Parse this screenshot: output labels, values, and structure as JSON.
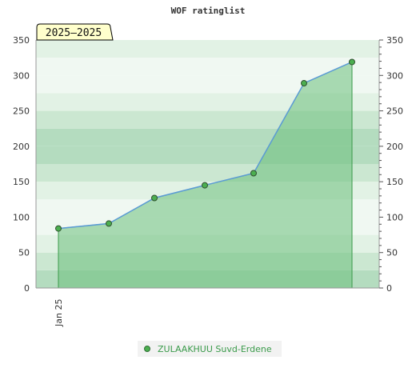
{
  "chart_data": {
    "type": "area",
    "title": "WOF ratinglist",
    "period_label": "2025–2025",
    "categories": [
      "Jan 25",
      "",
      "",
      "",
      "",
      "",
      ""
    ],
    "series": [
      {
        "name": "ZULAAKHUU Suvd-Erdene",
        "values": [
          84,
          91,
          127,
          145,
          162,
          289,
          319
        ]
      }
    ],
    "ylim": [
      0,
      350
    ],
    "yticks": [
      0,
      50,
      100,
      150,
      200,
      250,
      300,
      350
    ],
    "grid": true,
    "legend_position": "bottom",
    "colors": {
      "line": "#5b9bd5",
      "fill": "#6cbf7c",
      "marker": "#4caf50",
      "band_dark": "#b4dcbf",
      "band_mid": "#cbe7d1",
      "band_light": "#e2f2e5",
      "band_lightest": "#f0f8f2",
      "period_bg": "#ffffcc"
    }
  }
}
